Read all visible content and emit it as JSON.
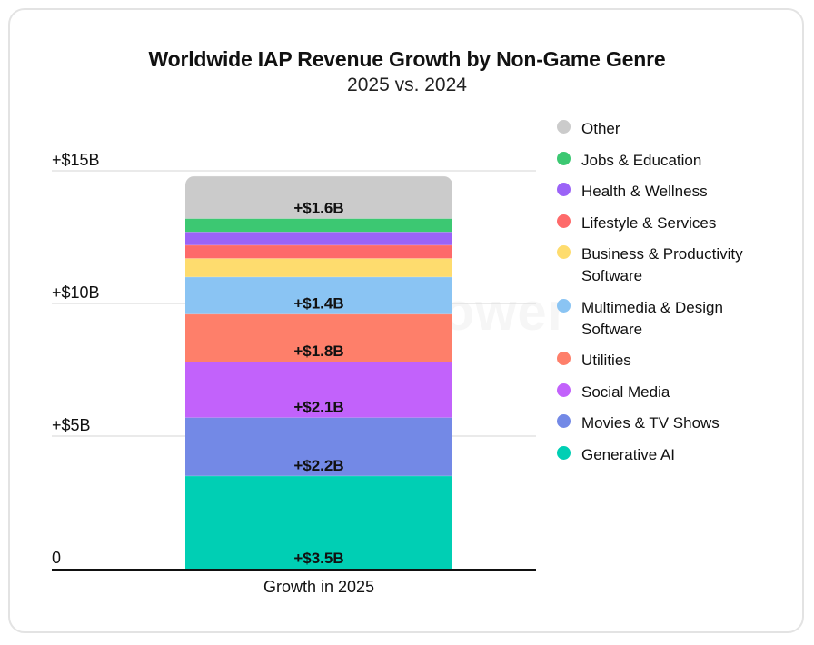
{
  "card": {
    "title": "Worldwide IAP Revenue Growth by Non-Game Genre",
    "subtitle": "2025 vs. 2024",
    "watermark": "Sensor Tower"
  },
  "chart_data": {
    "type": "bar",
    "stacked": true,
    "title": "Worldwide IAP Revenue Growth by Non-Game Genre",
    "subtitle": "2025 vs. 2024",
    "categories": [
      "Growth in 2025"
    ],
    "xlabel": "",
    "ylabel": "",
    "ylim": [
      0,
      15
    ],
    "yticks": [
      {
        "value": 0,
        "label": "0"
      },
      {
        "value": 5,
        "label": "+$5B"
      },
      {
        "value": 10,
        "label": "+$10B"
      },
      {
        "value": 15,
        "label": "+$15B"
      }
    ],
    "grid": true,
    "legend_position": "right",
    "units": "USD billions",
    "series": [
      {
        "name": "Generative AI",
        "values": [
          3.5
        ],
        "color": "#00cfb4",
        "label": "+$3.5B"
      },
      {
        "name": "Movies & TV Shows",
        "values": [
          2.2
        ],
        "color": "#7389e6",
        "label": "+$2.2B"
      },
      {
        "name": "Social Media",
        "values": [
          2.1
        ],
        "color": "#c262fb",
        "label": "+$2.1B"
      },
      {
        "name": "Utilities",
        "values": [
          1.8
        ],
        "color": "#fe7f6a",
        "label": "+$1.8B"
      },
      {
        "name": "Multimedia & Design Software",
        "values": [
          1.4
        ],
        "color": "#8ac4f3",
        "label": "+$1.4B"
      },
      {
        "name": "Business & Productivity Software",
        "values": [
          0.7
        ],
        "color": "#fedc6e",
        "label": ""
      },
      {
        "name": "Lifestyle & Services",
        "values": [
          0.5
        ],
        "color": "#fe6a6a",
        "label": ""
      },
      {
        "name": "Health & Wellness",
        "values": [
          0.5
        ],
        "color": "#9b63f7",
        "label": ""
      },
      {
        "name": "Jobs & Education",
        "values": [
          0.5
        ],
        "color": "#3cc872",
        "label": ""
      },
      {
        "name": "Other",
        "values": [
          1.6
        ],
        "color": "#cbcbcb",
        "label": "+$1.6B"
      }
    ],
    "legend": [
      {
        "name": "Other",
        "color": "#cbcbcb"
      },
      {
        "name": "Jobs & Education",
        "color": "#3cc872"
      },
      {
        "name": "Health & Wellness",
        "color": "#9b63f7"
      },
      {
        "name": "Lifestyle & Services",
        "color": "#fe6a6a"
      },
      {
        "name": "Business & Productivity Software",
        "color": "#fedc6e"
      },
      {
        "name": "Multimedia & Design Software",
        "color": "#8ac4f3"
      },
      {
        "name": "Utilities",
        "color": "#fe7f6a"
      },
      {
        "name": "Social Media",
        "color": "#c262fb"
      },
      {
        "name": "Movies & TV Shows",
        "color": "#7389e6"
      },
      {
        "name": "Generative AI",
        "color": "#00cfb4"
      }
    ]
  }
}
